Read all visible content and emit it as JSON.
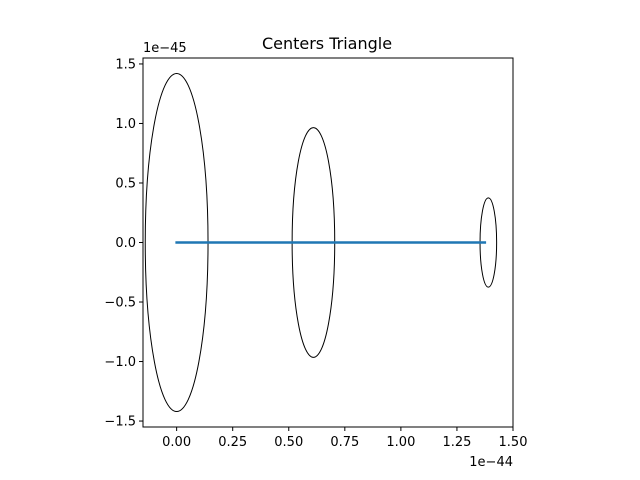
{
  "chart_data": {
    "type": "line",
    "title": "Centers Triangle",
    "xlabel": "",
    "ylabel": "",
    "x_offset_label": "1e−44",
    "y_offset_label": "1e−45",
    "xlim": [
      -0.15,
      1.5
    ],
    "ylim": [
      -1.55,
      1.55
    ],
    "x_ticks": [
      0.0,
      0.25,
      0.5,
      0.75,
      1.0,
      1.25,
      1.5
    ],
    "x_tick_labels": [
      "0.00",
      "0.25",
      "0.50",
      "0.75",
      "1.00",
      "1.25",
      "1.50"
    ],
    "y_ticks": [
      -1.5,
      -1.0,
      -0.5,
      0.0,
      0.5,
      1.0,
      1.5
    ],
    "y_tick_labels": [
      "−1.5",
      "−1.0",
      "−0.5",
      "0.0",
      "0.5",
      "1.0",
      "1.5"
    ],
    "grid": false,
    "series": [
      {
        "x": [
          0.0,
          0.61,
          1.38,
          0.0
        ],
        "y": [
          0.0,
          0.0,
          0.0,
          0.0
        ],
        "color": "#1f77b4"
      }
    ],
    "ellipses": [
      {
        "cx": 0.0,
        "cy": 0.0,
        "rx": 0.14,
        "ry": 1.42,
        "color": "#000000"
      },
      {
        "cx": 0.61,
        "cy": 0.0,
        "rx": 0.095,
        "ry": 0.965,
        "color": "#000000"
      },
      {
        "cx": 1.39,
        "cy": 0.0,
        "rx": 0.037,
        "ry": 0.375,
        "color": "#000000"
      }
    ]
  }
}
